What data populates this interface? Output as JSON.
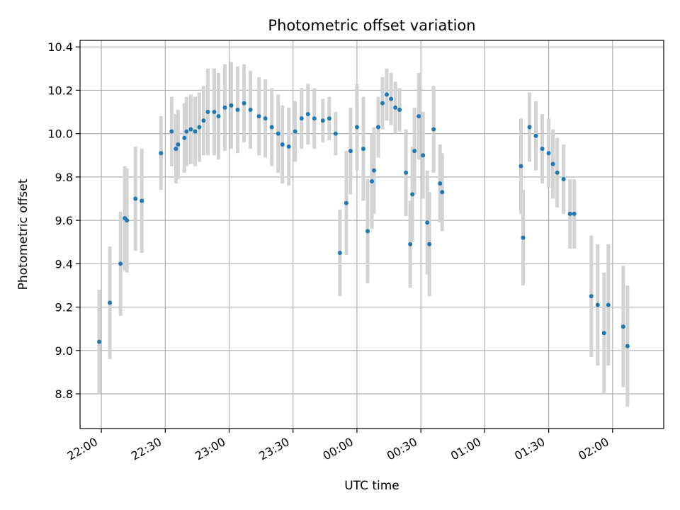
{
  "chart_data": {
    "type": "scatter",
    "title": "Photometric offset variation",
    "xlabel": "UTC time",
    "ylabel": "Photometric offset",
    "x_unit": "UTC time of night, spanning midnight",
    "xlim": [
      "21:50",
      "02:24"
    ],
    "ylim": [
      8.64,
      10.43
    ],
    "x_ticks": [
      "22:00",
      "22:30",
      "23:00",
      "23:30",
      "00:00",
      "00:30",
      "01:00",
      "01:30",
      "02:00"
    ],
    "y_ticks": [
      8.8,
      9.0,
      9.2,
      9.4,
      9.6,
      9.8,
      10.0,
      10.2,
      10.4
    ],
    "y_tick_labels": [
      "8.8",
      "9.0",
      "9.2",
      "9.4",
      "9.6",
      "9.8",
      "10.0",
      "10.2",
      "10.4"
    ],
    "grid": true,
    "legend": "none",
    "colors": {
      "points": "#1f77b4",
      "error_bars": "#d3d3d3",
      "grid": "#b0b0b0"
    },
    "series": [
      {
        "x": [
          "21:59",
          "22:04",
          "22:09",
          "22:11",
          "22:12",
          "22:16",
          "22:19",
          "22:28",
          "22:33",
          "22:35",
          "22:36",
          "22:39",
          "22:40",
          "22:42",
          "22:44",
          "22:46",
          "22:48",
          "22:50",
          "22:53",
          "22:55",
          "22:58",
          "23:01",
          "23:04",
          "23:07",
          "23:10",
          "23:14",
          "23:17",
          "23:20",
          "23:23",
          "23:25",
          "23:28",
          "23:31",
          "23:34",
          "23:37",
          "23:40",
          "23:44",
          "23:47",
          "23:50",
          "23:52",
          "23:55",
          "23:57",
          "00:00",
          "00:03",
          "00:05",
          "00:07",
          "00:08",
          "00:10",
          "00:12",
          "00:14",
          "00:16",
          "00:18",
          "00:20",
          "00:23",
          "00:25",
          "00:26",
          "00:27",
          "00:29",
          "00:31",
          "00:33",
          "00:34",
          "00:36",
          "00:39",
          "00:40",
          "01:17",
          "01:18",
          "01:21",
          "01:24",
          "01:27",
          "01:30",
          "01:32",
          "01:34",
          "01:37",
          "01:40",
          "01:42",
          "01:50",
          "01:53",
          "01:56",
          "01:58",
          "02:05",
          "02:07"
        ],
        "y": [
          9.04,
          9.22,
          9.4,
          9.61,
          9.6,
          9.7,
          9.69,
          9.91,
          10.01,
          9.93,
          9.95,
          9.98,
          10.01,
          10.02,
          10.01,
          10.03,
          10.06,
          10.1,
          10.1,
          10.08,
          10.12,
          10.13,
          10.11,
          10.14,
          10.11,
          10.08,
          10.07,
          10.03,
          10.0,
          9.95,
          9.94,
          10.01,
          10.07,
          10.09,
          10.07,
          10.06,
          10.07,
          10.0,
          9.45,
          9.68,
          9.92,
          10.03,
          9.93,
          9.55,
          9.78,
          9.83,
          10.03,
          10.14,
          10.18,
          10.16,
          10.12,
          10.11,
          9.82,
          9.49,
          9.72,
          9.92,
          10.08,
          9.9,
          9.59,
          9.49,
          10.02,
          9.77,
          9.73,
          9.85,
          9.52,
          10.03,
          9.99,
          9.93,
          9.91,
          9.86,
          9.82,
          9.79,
          9.63,
          9.63,
          9.25,
          9.21,
          9.08,
          9.21,
          9.11,
          9.02
        ],
        "y_err": [
          0.24,
          0.26,
          0.24,
          0.24,
          0.24,
          0.24,
          0.24,
          0.17,
          0.16,
          0.16,
          0.16,
          0.16,
          0.16,
          0.16,
          0.16,
          0.16,
          0.16,
          0.2,
          0.2,
          0.2,
          0.2,
          0.2,
          0.2,
          0.18,
          0.18,
          0.18,
          0.18,
          0.18,
          0.18,
          0.18,
          0.18,
          0.14,
          0.14,
          0.14,
          0.14,
          0.1,
          0.1,
          0.1,
          0.2,
          0.24,
          0.2,
          0.2,
          0.24,
          0.24,
          0.22,
          0.2,
          0.14,
          0.12,
          0.12,
          0.12,
          0.12,
          0.1,
          0.2,
          0.2,
          0.22,
          0.2,
          0.2,
          0.2,
          0.24,
          0.24,
          0.2,
          0.18,
          0.18,
          0.22,
          0.22,
          0.16,
          0.16,
          0.16,
          0.16,
          0.16,
          0.16,
          0.16,
          0.16,
          0.16,
          0.28,
          0.28,
          0.28,
          0.28,
          0.28,
          0.28
        ]
      }
    ]
  }
}
